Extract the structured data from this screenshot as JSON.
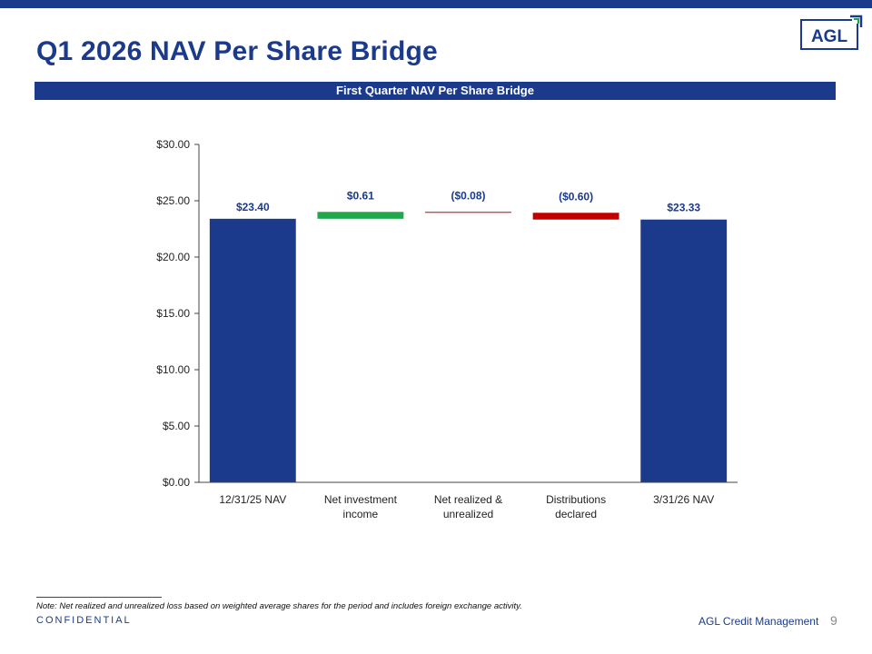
{
  "header": {
    "title": "Q1 2026 NAV Per Share Bridge",
    "logo_text": "AGL"
  },
  "section": {
    "banner": "First Quarter NAV Per Share Bridge"
  },
  "chart_data": {
    "type": "bar",
    "subtype": "waterfall",
    "categories": [
      "12/31/25 NAV",
      "Net investment\nincome",
      "Net realized &\nunrealized",
      "Distributions\ndeclared",
      "3/31/26 NAV"
    ],
    "values": [
      23.4,
      0.61,
      -0.08,
      -0.6,
      23.33
    ],
    "kinds": [
      "total",
      "increase",
      "decrease",
      "decrease",
      "total"
    ],
    "data_labels": [
      "$23.40",
      "$0.61",
      "($0.08)",
      "($0.60)",
      "$23.33"
    ],
    "y_ticks": [
      "$0.00",
      "$5.00",
      "$10.00",
      "$15.00",
      "$20.00",
      "$25.00",
      "$30.00"
    ],
    "ylim": [
      0,
      30
    ],
    "colors": {
      "total": "#1b3a8c",
      "increase": "#1ea84b",
      "decrease": "#c00000",
      "label": "#1b3a8c"
    }
  },
  "footer": {
    "note": "Note: Net realized and unrealized loss based on weighted average shares for the period and includes foreign exchange activity.",
    "confidential": "CONFIDENTIAL",
    "company": "AGL Credit Management",
    "page_number": "9"
  }
}
